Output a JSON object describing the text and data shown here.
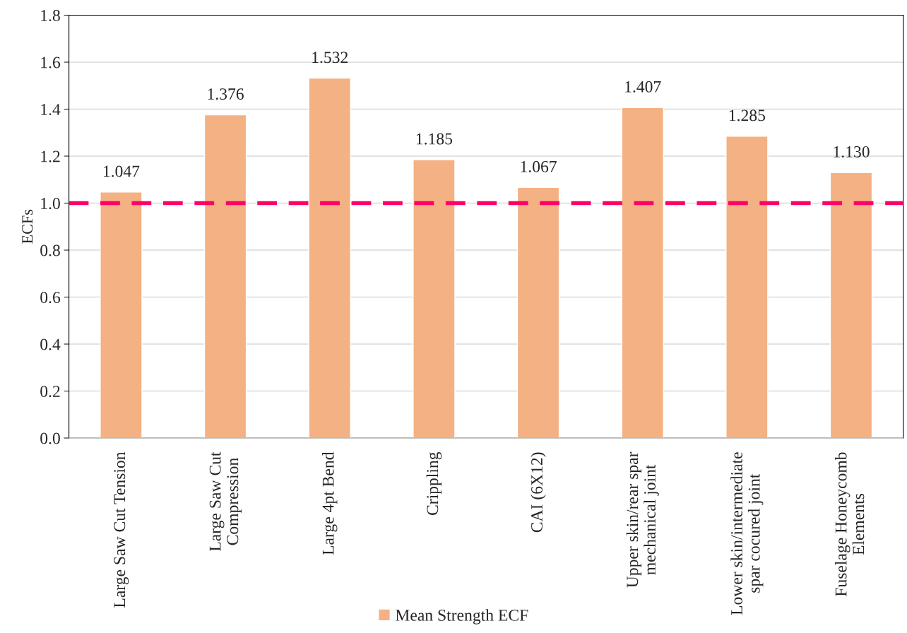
{
  "chart_data": {
    "type": "bar",
    "ylabel": "ECFs",
    "categories": [
      "Large Saw Cut Tension",
      "Large Saw Cut\nCompression",
      "Large 4pt Bend",
      "Crippling",
      "CAI (6X12)",
      "Upper skin/rear spar\nmechanical joint",
      "Lower skin/intermediate\nspar cocured joint",
      "Fuselage Honeycomb\nElements"
    ],
    "series": [
      {
        "name": "Mean Strength ECF",
        "color": "#f4b183",
        "values": [
          1.047,
          1.376,
          1.532,
          1.185,
          1.067,
          1.407,
          1.285,
          1.13
        ]
      }
    ],
    "value_labels": [
      "1.047",
      "1.376",
      "1.532",
      "1.185",
      "1.067",
      "1.407",
      "1.285",
      "1.130"
    ],
    "ylim": [
      0,
      1.8
    ],
    "yticks": [
      {
        "value": 0,
        "label": "0.0"
      },
      {
        "value": 0.2,
        "label": "0.2"
      },
      {
        "value": 0.4,
        "label": "0.4"
      },
      {
        "value": 0.6,
        "label": "0.6"
      },
      {
        "value": 0.8,
        "label": "0.8"
      },
      {
        "value": 1.0,
        "label": "1.0"
      },
      {
        "value": 1.2,
        "label": "1.2"
      },
      {
        "value": 1.4,
        "label": "1.4"
      },
      {
        "value": 1.6,
        "label": "1.6"
      },
      {
        "value": 1.8,
        "label": "1.8"
      }
    ],
    "ref_lines": [
      {
        "axis": "y",
        "value": 1.0,
        "color": "#ff0066",
        "line_style": "dashed"
      }
    ],
    "grid": "y",
    "legend": "bottom"
  }
}
